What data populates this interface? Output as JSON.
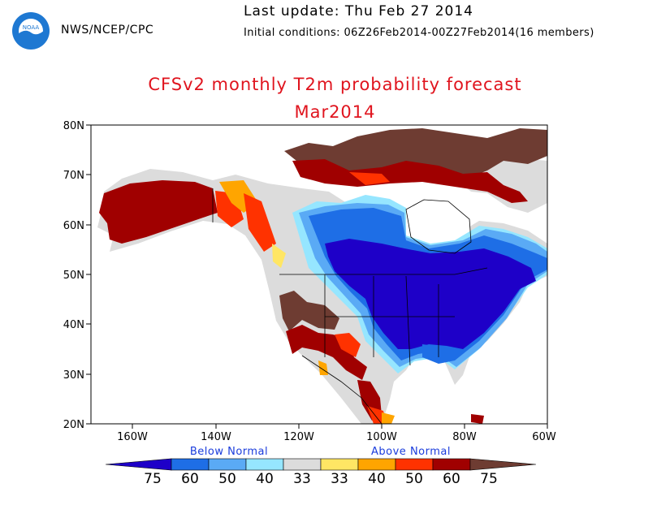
{
  "header": {
    "org": "NWS/NCEP/CPC",
    "last_update": "Last update: Thu Feb 27 2014",
    "initial_conditions": "Initial conditions: 06Z26Feb2014-00Z27Feb2014(16 members)",
    "logo_text": "NOAA"
  },
  "title": "CFSv2 monthly T2m probability forecast",
  "subtitle": "Mar2014",
  "axes": {
    "lat_labels": [
      "80N",
      "70N",
      "60N",
      "50N",
      "40N",
      "30N",
      "20N"
    ],
    "lon_labels": [
      "160W",
      "140W",
      "120W",
      "100W",
      "80W",
      "60W"
    ]
  },
  "legend": {
    "below_label": "Below Normal",
    "above_label": "Above Normal",
    "values": [
      "75",
      "60",
      "50",
      "40",
      "33",
      "33",
      "40",
      "50",
      "60",
      "75"
    ],
    "colors": [
      "#1e00c8",
      "#1e6ee6",
      "#5aaaf5",
      "#96e6ff",
      "#dcdcdc",
      "#ffe664",
      "#ffa500",
      "#ff3200",
      "#a00000",
      "#6e3c32"
    ]
  },
  "colors": {
    "title": "#e0141e",
    "land_gray": "#dcdcdc",
    "ocean": "#ffffff"
  }
}
